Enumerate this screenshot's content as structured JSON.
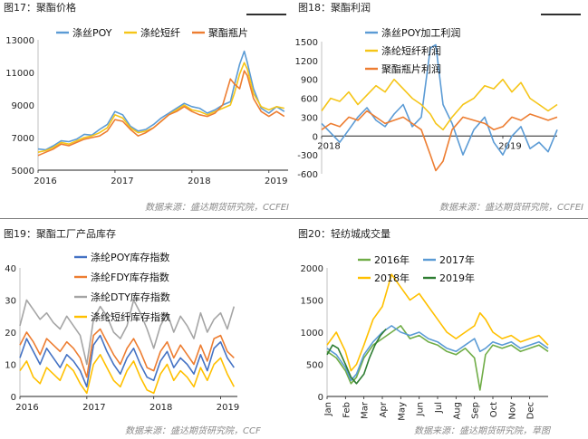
{
  "panels": [
    {
      "title": "图17：聚酯价格",
      "source": "数据来源：盛达期货研究院，CCFEI"
    },
    {
      "title": "图18：聚酯利润",
      "source": "数据来源：盛达期货研究院，CCFEI"
    },
    {
      "title": "图19：聚酯工厂产品库存",
      "source": "数据来源：盛达期货研究院，CCF"
    },
    {
      "title": "图20：轻纺城成交量",
      "source": "数据来源：盛达期货研究院，草图"
    }
  ],
  "chart_data": [
    {
      "type": "line",
      "title": "图17：聚酯价格",
      "xlabel": "",
      "ylabel": "",
      "x_ticks": [
        "2016",
        "2017",
        "2018",
        "2019"
      ],
      "xlim": [
        2016.0,
        2019.25
      ],
      "y_ticks": [
        5000,
        7000,
        9000,
        11000,
        13000
      ],
      "ylim": [
        5000,
        13000
      ],
      "grid": false,
      "legend": "top",
      "series": [
        {
          "name": "涤丝POY",
          "color": "#5b9bd5",
          "x": [
            2016.0,
            2016.1,
            2016.2,
            2016.3,
            2016.4,
            2016.5,
            2016.6,
            2016.7,
            2016.8,
            2016.9,
            2017.0,
            2017.1,
            2017.2,
            2017.3,
            2017.4,
            2017.5,
            2017.6,
            2017.7,
            2017.8,
            2017.9,
            2018.0,
            2018.1,
            2018.2,
            2018.3,
            2018.4,
            2018.5,
            2018.55,
            2018.62,
            2018.68,
            2018.72,
            2018.8,
            2018.9,
            2019.0,
            2019.1,
            2019.2
          ],
          "values": [
            6300,
            6250,
            6500,
            6800,
            6750,
            6900,
            7200,
            7150,
            7500,
            7800,
            8600,
            8400,
            7700,
            7400,
            7500,
            7800,
            8200,
            8500,
            8800,
            9100,
            8900,
            8800,
            8500,
            8700,
            9000,
            9200,
            10200,
            11500,
            12300,
            11600,
            10000,
            8800,
            8500,
            8900,
            8600
          ]
        },
        {
          "name": "涤纶短纤",
          "color": "#f5c518",
          "x": [
            2016.0,
            2016.1,
            2016.2,
            2016.3,
            2016.4,
            2016.5,
            2016.6,
            2016.7,
            2016.8,
            2016.9,
            2017.0,
            2017.1,
            2017.2,
            2017.3,
            2017.4,
            2017.5,
            2017.6,
            2017.7,
            2017.8,
            2017.9,
            2018.0,
            2018.1,
            2018.2,
            2018.3,
            2018.4,
            2018.5,
            2018.55,
            2018.62,
            2018.68,
            2018.72,
            2018.8,
            2018.9,
            2019.0,
            2019.1,
            2019.2
          ],
          "values": [
            6100,
            6200,
            6400,
            6700,
            6600,
            6800,
            7000,
            7100,
            7300,
            7600,
            8400,
            8200,
            7600,
            7300,
            7400,
            7600,
            8000,
            8400,
            8700,
            9000,
            8700,
            8600,
            8400,
            8600,
            8800,
            9000,
            9700,
            10900,
            11600,
            11200,
            9700,
            8900,
            8700,
            8900,
            8800
          ]
        },
        {
          "name": "聚酯瓶片",
          "color": "#ed7d31",
          "x": [
            2016.0,
            2016.1,
            2016.2,
            2016.3,
            2016.4,
            2016.5,
            2016.6,
            2016.7,
            2016.8,
            2016.9,
            2017.0,
            2017.1,
            2017.2,
            2017.3,
            2017.4,
            2017.5,
            2017.6,
            2017.7,
            2017.8,
            2017.9,
            2018.0,
            2018.1,
            2018.2,
            2018.3,
            2018.4,
            2018.5,
            2018.55,
            2018.62,
            2018.68,
            2018.72,
            2018.8,
            2018.9,
            2019.0,
            2019.1,
            2019.2
          ],
          "values": [
            5900,
            6100,
            6300,
            6600,
            6500,
            6700,
            6900,
            7000,
            7100,
            7400,
            8100,
            8000,
            7500,
            7100,
            7300,
            7600,
            8000,
            8400,
            8600,
            8900,
            8600,
            8400,
            8300,
            8500,
            9000,
            10600,
            10300,
            10000,
            11100,
            10800,
            9400,
            8600,
            8300,
            8600,
            8300
          ]
        }
      ]
    },
    {
      "type": "line",
      "title": "图18：聚酯利润",
      "xlabel": "",
      "ylabel": "",
      "x_ticks": [
        "2018",
        "2019"
      ],
      "xlim": [
        2018.0,
        2019.3
      ],
      "y_ticks": [
        -600,
        -300,
        0,
        300,
        600,
        900,
        1200,
        1500
      ],
      "ylim": [
        -600,
        1500
      ],
      "grid": false,
      "legend": "top-left",
      "series": [
        {
          "name": "涤丝POY加工利润",
          "color": "#5b9bd5",
          "x": [
            2018.0,
            2018.05,
            2018.1,
            2018.15,
            2018.2,
            2018.25,
            2018.3,
            2018.35,
            2018.4,
            2018.45,
            2018.5,
            2018.55,
            2018.6,
            2018.63,
            2018.67,
            2018.72,
            2018.78,
            2018.84,
            2018.9,
            2018.95,
            2019.0,
            2019.05,
            2019.1,
            2019.15,
            2019.2,
            2019.25,
            2019.3
          ],
          "values": [
            200,
            50,
            -100,
            100,
            300,
            450,
            250,
            150,
            350,
            500,
            150,
            300,
            1400,
            1450,
            500,
            200,
            -300,
            100,
            300,
            -100,
            -300,
            0,
            150,
            -200,
            -100,
            -250,
            100
          ]
        },
        {
          "name": "涤纶短纤利润",
          "color": "#f5c518",
          "x": [
            2018.0,
            2018.05,
            2018.1,
            2018.15,
            2018.2,
            2018.25,
            2018.3,
            2018.35,
            2018.4,
            2018.45,
            2018.5,
            2018.55,
            2018.6,
            2018.63,
            2018.67,
            2018.72,
            2018.78,
            2018.84,
            2018.9,
            2018.95,
            2019.0,
            2019.05,
            2019.1,
            2019.15,
            2019.2,
            2019.25,
            2019.3
          ],
          "values": [
            400,
            600,
            550,
            700,
            500,
            650,
            800,
            700,
            900,
            750,
            600,
            500,
            350,
            200,
            100,
            300,
            500,
            600,
            800,
            750,
            900,
            700,
            850,
            600,
            500,
            400,
            500
          ]
        },
        {
          "name": "聚酯瓶片利润",
          "color": "#ed7d31",
          "x": [
            2018.0,
            2018.05,
            2018.1,
            2018.15,
            2018.2,
            2018.25,
            2018.3,
            2018.35,
            2018.4,
            2018.45,
            2018.5,
            2018.55,
            2018.6,
            2018.63,
            2018.67,
            2018.72,
            2018.78,
            2018.84,
            2018.9,
            2018.95,
            2019.0,
            2019.05,
            2019.1,
            2019.15,
            2019.2,
            2019.25,
            2019.3
          ],
          "values": [
            100,
            200,
            150,
            300,
            250,
            400,
            300,
            200,
            250,
            300,
            200,
            100,
            -300,
            -550,
            -400,
            100,
            300,
            250,
            200,
            100,
            150,
            300,
            250,
            350,
            300,
            250,
            300
          ]
        }
      ]
    },
    {
      "type": "line",
      "title": "图19：聚酯工厂产品库存",
      "xlabel": "",
      "ylabel": "",
      "x_ticks": [
        "2016",
        "2017",
        "2018",
        "2019"
      ],
      "xlim": [
        2016.0,
        2019.25
      ],
      "y_ticks": [
        0,
        10,
        20,
        30,
        40
      ],
      "ylim": [
        0,
        40
      ],
      "grid": false,
      "legend": "top",
      "series": [
        {
          "name": "涤纶POY库存指数",
          "color": "#4472c4",
          "x": [
            2016.0,
            2016.1,
            2016.2,
            2016.3,
            2016.4,
            2016.5,
            2016.6,
            2016.7,
            2016.8,
            2016.9,
            2017.0,
            2017.1,
            2017.2,
            2017.3,
            2017.4,
            2017.5,
            2017.6,
            2017.7,
            2017.8,
            2017.9,
            2018.0,
            2018.1,
            2018.2,
            2018.3,
            2018.4,
            2018.5,
            2018.6,
            2018.7,
            2018.8,
            2018.9,
            2019.0,
            2019.1,
            2019.2
          ],
          "values": [
            12,
            18,
            14,
            10,
            15,
            12,
            9,
            13,
            11,
            8,
            3,
            16,
            19,
            14,
            10,
            7,
            12,
            15,
            10,
            6,
            5,
            11,
            14,
            9,
            12,
            10,
            7,
            13,
            8,
            15,
            17,
            12,
            9
          ]
        },
        {
          "name": "涤纶FDY库存指数",
          "color": "#ed7d31",
          "x": [
            2016.0,
            2016.1,
            2016.2,
            2016.3,
            2016.4,
            2016.5,
            2016.6,
            2016.7,
            2016.8,
            2016.9,
            2017.0,
            2017.1,
            2017.2,
            2017.3,
            2017.4,
            2017.5,
            2017.6,
            2017.7,
            2017.8,
            2017.9,
            2018.0,
            2018.1,
            2018.2,
            2018.3,
            2018.4,
            2018.5,
            2018.6,
            2018.7,
            2018.8,
            2018.9,
            2019.0,
            2019.1,
            2019.2
          ],
          "values": [
            16,
            20,
            17,
            13,
            18,
            16,
            14,
            17,
            15,
            12,
            6,
            19,
            21,
            17,
            13,
            10,
            15,
            18,
            14,
            9,
            8,
            14,
            17,
            12,
            16,
            13,
            10,
            16,
            11,
            18,
            19,
            14,
            12
          ]
        },
        {
          "name": "涤纶DTY库存指数",
          "color": "#a5a5a5",
          "x": [
            2016.0,
            2016.1,
            2016.2,
            2016.3,
            2016.4,
            2016.5,
            2016.6,
            2016.7,
            2016.8,
            2016.9,
            2017.0,
            2017.1,
            2017.2,
            2017.3,
            2017.4,
            2017.5,
            2017.6,
            2017.7,
            2017.8,
            2017.9,
            2018.0,
            2018.1,
            2018.2,
            2018.3,
            2018.4,
            2018.5,
            2018.6,
            2018.7,
            2018.8,
            2018.9,
            2019.0,
            2019.1,
            2019.2
          ],
          "values": [
            22,
            30,
            27,
            24,
            26,
            23,
            21,
            25,
            22,
            19,
            10,
            24,
            28,
            25,
            20,
            18,
            22,
            30,
            26,
            21,
            15,
            22,
            26,
            20,
            25,
            22,
            18,
            26,
            20,
            24,
            26,
            21,
            28
          ]
        },
        {
          "name": "涤纶短纤库存指数",
          "color": "#ffc000",
          "x": [
            2016.0,
            2016.1,
            2016.2,
            2016.3,
            2016.4,
            2016.5,
            2016.6,
            2016.7,
            2016.8,
            2016.9,
            2017.0,
            2017.1,
            2017.2,
            2017.3,
            2017.4,
            2017.5,
            2017.6,
            2017.7,
            2017.8,
            2017.9,
            2018.0,
            2018.1,
            2018.2,
            2018.3,
            2018.4,
            2018.5,
            2018.6,
            2018.7,
            2018.8,
            2018.9,
            2019.0,
            2019.1,
            2019.2
          ],
          "values": [
            8,
            11,
            6,
            4,
            9,
            7,
            5,
            10,
            8,
            4,
            1,
            10,
            13,
            9,
            5,
            3,
            8,
            11,
            6,
            2,
            1,
            7,
            10,
            5,
            8,
            6,
            3,
            9,
            5,
            10,
            12,
            7,
            3
          ]
        }
      ]
    },
    {
      "type": "line",
      "title": "图20：轻纺城成交量",
      "xlabel": "",
      "ylabel": "",
      "x_ticks": [
        "Jan",
        "Feb",
        "Mar",
        "Apr",
        "May",
        "Jun",
        "Jul",
        "Aug",
        "Sep",
        "Oct",
        "Nov",
        "Dec"
      ],
      "xlim": [
        0,
        12
      ],
      "y_ticks": [
        0,
        500,
        1000,
        1500,
        2000
      ],
      "ylim": [
        0,
        2000
      ],
      "grid": false,
      "legend": "top",
      "series": [
        {
          "name": "2016年",
          "color": "#70ad47",
          "x": [
            0,
            0.5,
            1,
            1.3,
            1.6,
            2,
            2.5,
            3,
            3.5,
            4,
            4.5,
            5,
            5.5,
            6,
            6.5,
            7,
            7.5,
            8,
            8.3,
            8.6,
            9,
            9.5,
            10,
            10.5,
            11,
            11.5,
            12
          ],
          "values": [
            700,
            600,
            400,
            200,
            300,
            600,
            800,
            900,
            1000,
            1100,
            900,
            950,
            850,
            800,
            700,
            650,
            750,
            600,
            100,
            650,
            800,
            750,
            800,
            700,
            750,
            800,
            700
          ]
        },
        {
          "name": "2017年",
          "color": "#5b9bd5",
          "x": [
            0,
            0.5,
            1,
            1.3,
            1.6,
            2,
            2.5,
            3,
            3.5,
            4,
            4.5,
            5,
            5.5,
            6,
            6.5,
            7,
            7.5,
            8,
            8.3,
            8.6,
            9,
            9.5,
            10,
            10.5,
            11,
            11.5,
            12
          ],
          "values": [
            750,
            650,
            450,
            250,
            350,
            650,
            850,
            1000,
            1100,
            1000,
            950,
            1000,
            900,
            850,
            750,
            700,
            800,
            900,
            700,
            750,
            850,
            800,
            850,
            750,
            800,
            850,
            750
          ]
        },
        {
          "name": "2018年",
          "color": "#ffc000",
          "x": [
            0,
            0.5,
            1,
            1.3,
            1.6,
            2,
            2.5,
            3,
            3.5,
            4,
            4.5,
            5,
            5.5,
            6,
            6.5,
            7,
            7.5,
            8,
            8.3,
            8.6,
            9,
            9.5,
            10,
            10.5,
            11,
            11.5,
            12
          ],
          "values": [
            800,
            1000,
            700,
            400,
            500,
            800,
            1200,
            1400,
            1900,
            1700,
            1500,
            1600,
            1400,
            1200,
            1000,
            900,
            1000,
            1100,
            1300,
            1200,
            1000,
            900,
            950,
            850,
            900,
            950,
            800
          ]
        },
        {
          "name": "2019年",
          "color": "#2e7d32",
          "x": [
            0,
            0.3,
            0.6,
            1,
            1.3,
            1.6,
            2,
            2.3,
            2.6,
            2.9,
            3.2
          ],
          "values": [
            650,
            800,
            750,
            500,
            300,
            200,
            350,
            600,
            800,
            950,
            1050
          ]
        }
      ]
    }
  ]
}
